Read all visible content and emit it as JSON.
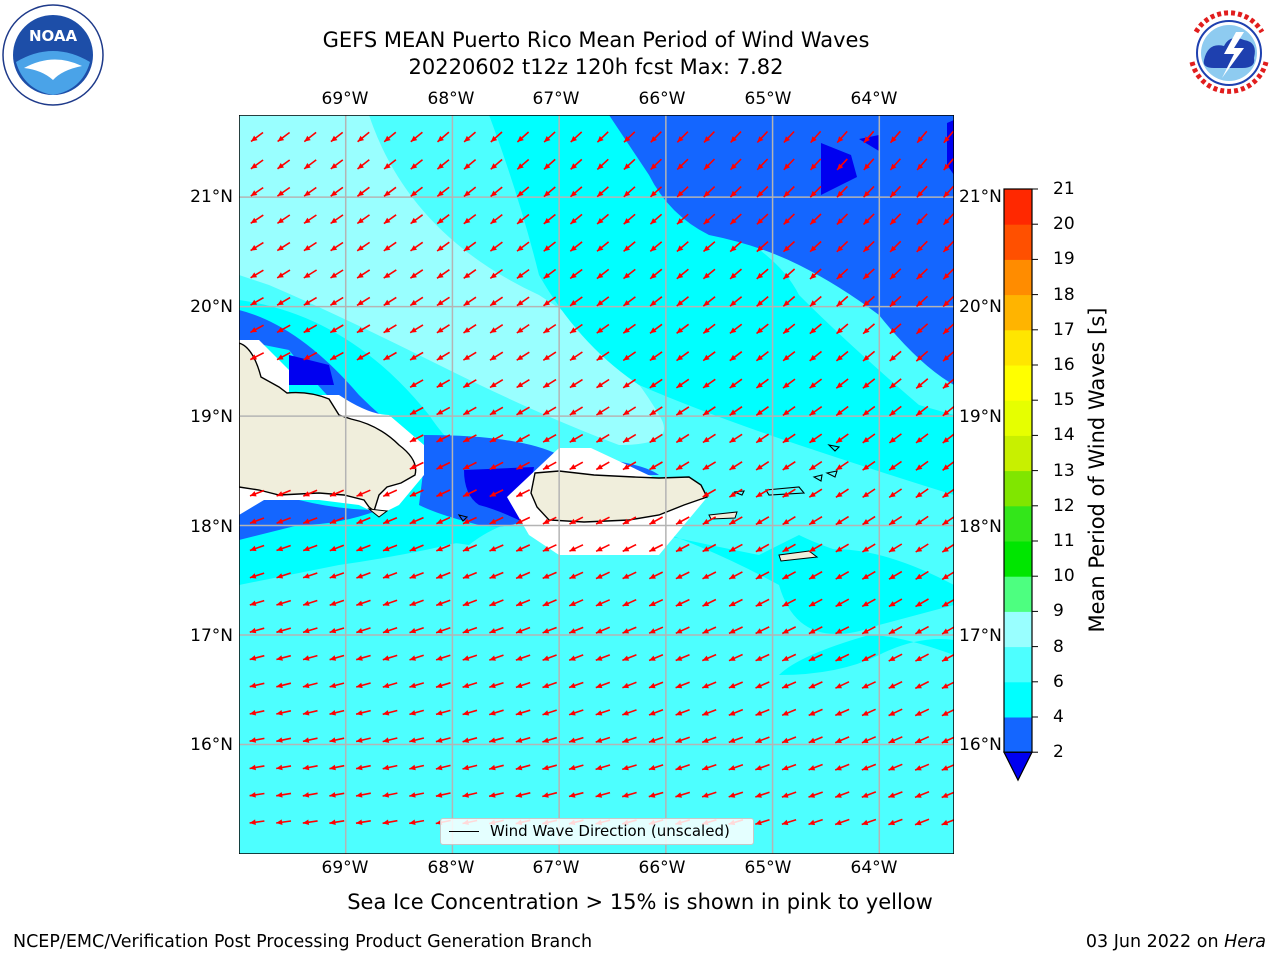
{
  "header": {
    "title_line1": "GEFS MEAN Puerto Rico Mean Period of Wind Waves",
    "title_line2": "20220602 t12z 120h fcst   Max: 7.82"
  },
  "logos": {
    "left": {
      "name": "noaa-logo",
      "text": "NOAA"
    },
    "right": {
      "name": "nws-logo",
      "text": "NATIONAL WEATHER SERVICE"
    }
  },
  "map": {
    "lon_labels": [
      "69°W",
      "68°W",
      "67°W",
      "66°W",
      "65°W",
      "64°W"
    ],
    "lat_labels": [
      "21°N",
      "20°N",
      "19°N",
      "18°N",
      "17°N",
      "16°N"
    ],
    "lon_range": [
      -70.0,
      -63.3
    ],
    "lat_range": [
      15.0,
      21.75
    ],
    "colors": {
      "band_2_4": "#1466ff",
      "band_under_2": "#0000f0",
      "band_4_6": "#00ffff",
      "band_6_8": "#4dffff",
      "band_8_9": "#99ffff",
      "land": "#f0eedc",
      "arrow": "#ff0000",
      "grid": "#b4b4b4"
    }
  },
  "legend": {
    "label": "Wind Wave Direction (unscaled)"
  },
  "colorbar": {
    "label": "Mean Period of Wind Waves [s]",
    "ticks": [
      "2",
      "4",
      "6",
      "8",
      "9",
      "10",
      "11",
      "12",
      "13",
      "14",
      "15",
      "16",
      "17",
      "18",
      "19",
      "20",
      "21"
    ],
    "bands": [
      "#1466ff",
      "#00ffff",
      "#4dffff",
      "#99ffff",
      "#4dff80",
      "#00e600",
      "#33e61a",
      "#80e600",
      "#c8f000",
      "#e6ff00",
      "#ffff00",
      "#ffe600",
      "#ffb400",
      "#ff8c00",
      "#ff5000",
      "#ff2800"
    ],
    "under_color": "#0000f0"
  },
  "subtitle": "Sea Ice Concentration > 15% is shown in pink to yellow",
  "footer": {
    "left": "NCEP/EMC/Verification Post Processing Product Generation Branch",
    "date": "03 Jun 2022 on",
    "machine": "Hera"
  }
}
